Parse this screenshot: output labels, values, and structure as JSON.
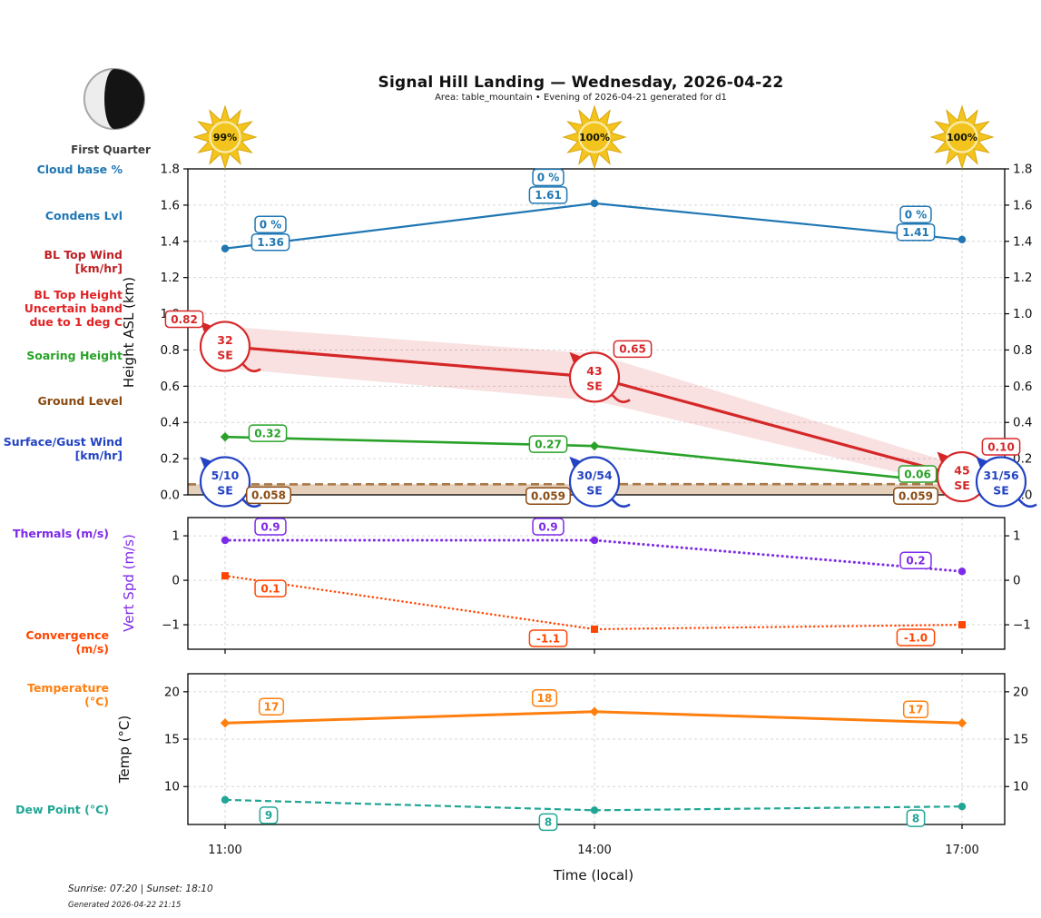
{
  "header": {
    "title": "Signal Hill Landing — Wednesday, 2026-04-22",
    "subtitle": "Area: table_mountain • Evening of 2026-04-21 generated for d1"
  },
  "moon": {
    "phase": "First Quarter"
  },
  "suns": [
    "99%",
    "100%",
    "100%"
  ],
  "series_labels": {
    "cloud_base": "Cloud base %",
    "condens": "Condens Lvl",
    "bl_top_wind_1": "BL Top Wind",
    "bl_top_wind_2": "[km/hr]",
    "bl_top_height_1": "BL Top Height",
    "bl_top_height_2": "Uncertain band",
    "bl_top_height_3": "due to 1 deg C",
    "soaring": "Soaring Height",
    "ground": "Ground Level",
    "surface_wind_1": "Surface/Gust Wind",
    "surface_wind_2": "[km/hr]",
    "thermals": "Thermals (m/s)",
    "convergence": "Convergence (m/s)",
    "temperature": "Temperature (°C)",
    "dew_point": "Dew Point (°C)"
  },
  "colors": {
    "labels": {
      "cloud_base": "#1f77b4",
      "condens": "#1f77b4",
      "bl_top_wind": "#bf2024",
      "bl_top_height": "#e02426",
      "soaring": "#28a228",
      "ground": "#8a4a12",
      "surface_wind": "#2343c3",
      "thermals": "#7d2ae8",
      "convergence": "#ff4500",
      "temperature": "#ff7f0e",
      "dew_point": "#21a695"
    },
    "sun": "#f2c41d",
    "sun_edge": "#d9a50f",
    "moon_dark": "#141414",
    "moon_light": "#ededed",
    "grid": "#d6d6d6"
  },
  "xaxis": {
    "ticks": [
      "11:00",
      "14:00",
      "17:00"
    ],
    "label": "Time (local)"
  },
  "footer": {
    "sun_times": "Sunrise: 07:20 | Sunset: 18:10",
    "generated": "Generated 2026-04-22 21:15"
  },
  "chart_data": [
    {
      "type": "line",
      "name": "height-asl",
      "ylabel": "Height ASL (km)",
      "ylim": [
        0,
        1.8
      ],
      "ytick_values": [
        0,
        0.2,
        0.4,
        0.6,
        0.8,
        1.0,
        1.2,
        1.4,
        1.6,
        1.8
      ],
      "ytick_labels": [
        "0.0",
        "0.2",
        "0.4",
        "0.6",
        "0.8",
        "1.0",
        "1.2",
        "1.4",
        "1.6",
        "1.8"
      ],
      "x": [
        "11:00",
        "14:00",
        "17:00"
      ],
      "grid": true,
      "series": [
        {
          "name": "Condens Lvl",
          "color": "#1f77b4",
          "line_style": "solid",
          "marker": "circle",
          "values": [
            1.36,
            1.61,
            1.41
          ],
          "point_labels": [
            "1.36",
            "1.61",
            "1.41"
          ],
          "cloud_labels": [
            "0 %",
            "0 %",
            "0 %"
          ]
        },
        {
          "name": "BL Top Height",
          "color": "#d62728",
          "line_style": "solid",
          "marker": "none",
          "values": [
            0.82,
            0.65,
            0.1
          ],
          "point_labels": [
            "0.82",
            "0.65",
            "0.10"
          ],
          "band_upper": [
            0.93,
            0.78,
            0.16
          ],
          "band_lower": [
            0.7,
            0.52,
            0.04
          ],
          "wind_circles": [
            {
              "speed": "32",
              "dir": "SE"
            },
            {
              "speed": "43",
              "dir": "SE"
            },
            {
              "speed": "45",
              "dir": "SE"
            }
          ]
        },
        {
          "name": "Soaring Height",
          "color": "#28a228",
          "line_style": "solid",
          "marker": "diamond",
          "values": [
            0.32,
            0.27,
            0.06
          ],
          "point_labels": [
            "0.32",
            "0.27",
            "0.06"
          ]
        },
        {
          "name": "Ground Level",
          "color": "#a87848",
          "label_color": "#8a4a12",
          "line_style": "dashed",
          "marker": "none",
          "values": [
            0.058,
            0.059,
            0.059
          ],
          "point_labels": [
            "0.058",
            "0.059",
            "0.059"
          ],
          "fill_to_bottom": true,
          "fill_color": "#c9a178"
        }
      ],
      "surface_wind_circles": {
        "color": "#2343c3",
        "items": [
          {
            "speed": "5/10",
            "dir": "SE"
          },
          {
            "speed": "30/54",
            "dir": "SE"
          },
          {
            "speed": "31/56",
            "dir": "SE"
          }
        ]
      }
    },
    {
      "type": "line",
      "name": "vert-spd",
      "ylabel": "Vert Spd (m/s)",
      "ylim": [
        -1.55,
        1.41
      ],
      "ytick_values": [
        1,
        0,
        -1
      ],
      "ytick_labels": [
        "1",
        "0",
        "−1"
      ],
      "x": [
        "11:00",
        "14:00",
        "17:00"
      ],
      "grid": true,
      "series": [
        {
          "name": "Thermals",
          "color": "#7d2ae8",
          "line_style": "dotted",
          "marker": "circle",
          "values": [
            0.9,
            0.9,
            0.2
          ],
          "point_labels": [
            "0.9",
            "0.9",
            "0.2"
          ]
        },
        {
          "name": "Convergence",
          "color": "#ff4500",
          "line_style": "dotted",
          "marker": "square",
          "values": [
            0.1,
            -1.1,
            -1.0
          ],
          "point_labels": [
            "0.1",
            "-1.1",
            "-1.0"
          ]
        }
      ]
    },
    {
      "type": "line",
      "name": "temperature",
      "ylabel": "Temp (°C)",
      "ylim": [
        6,
        21.9
      ],
      "ytick_values": [
        20,
        15,
        10
      ],
      "ytick_labels": [
        "20",
        "15",
        "10"
      ],
      "x": [
        "11:00",
        "14:00",
        "17:00"
      ],
      "grid": true,
      "series": [
        {
          "name": "Temperature",
          "color": "#ff7f0e",
          "line_style": "solid",
          "marker": "diamond",
          "values": [
            16.7,
            17.9,
            16.7
          ],
          "point_labels": [
            "17",
            "18",
            "17"
          ]
        },
        {
          "name": "Dew Point",
          "color": "#21a695",
          "line_style": "dashed",
          "marker": "circle",
          "values": [
            8.6,
            7.5,
            7.9
          ],
          "point_labels": [
            "9",
            "8",
            "8"
          ]
        }
      ]
    }
  ]
}
